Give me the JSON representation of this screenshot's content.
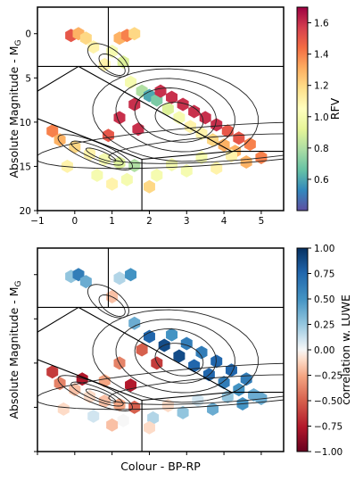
{
  "chart_data": [
    {
      "type": "heatmap",
      "panel": "top",
      "xlabel": "",
      "ylabel": "Absolute Magnitude - M",
      "ylabel_sub": "G",
      "xlim": [
        -1,
        5.6
      ],
      "ylim": [
        20,
        -3
      ],
      "y_inverted": true,
      "xticks": [
        "−1",
        "0",
        "1",
        "2",
        "3",
        "4",
        "5"
      ],
      "xtick_values": [
        -1,
        0,
        1,
        2,
        3,
        4,
        5
      ],
      "yticks": [
        "0",
        "5",
        "10",
        "15",
        "20"
      ],
      "ytick_values": [
        0,
        5,
        10,
        15,
        20
      ],
      "colorbar": {
        "label": "RFV",
        "range": [
          0.4,
          1.7
        ],
        "ticks": [
          "0.6",
          "0.8",
          "1.0",
          "1.2",
          "1.4",
          "1.6"
        ],
        "tick_values": [
          0.6,
          0.8,
          1.0,
          1.2,
          1.4,
          1.6
        ],
        "colormap": "Spectral_r"
      },
      "cells": [
        {
          "x": -0.1,
          "y": 0.2,
          "v": 1.5
        },
        {
          "x": 0.1,
          "y": 0.0,
          "v": 1.3
        },
        {
          "x": 0.3,
          "y": 0.5,
          "v": 1.2
        },
        {
          "x": 0.5,
          "y": 1.5,
          "v": 1.1
        },
        {
          "x": 1.2,
          "y": 0.5,
          "v": 1.3
        },
        {
          "x": 1.4,
          "y": 0.2,
          "v": 1.4
        },
        {
          "x": 1.6,
          "y": 0.0,
          "v": 1.2
        },
        {
          "x": 1.0,
          "y": 2.0,
          "v": 1.0
        },
        {
          "x": 1.3,
          "y": 3.2,
          "v": 0.9
        },
        {
          "x": 0.8,
          "y": 3.5,
          "v": 1.1
        },
        {
          "x": 1.5,
          "y": 5.5,
          "v": 1.0
        },
        {
          "x": 1.8,
          "y": 6.5,
          "v": 0.8
        },
        {
          "x": 2.0,
          "y": 7.0,
          "v": 0.6
        },
        {
          "x": 2.2,
          "y": 7.5,
          "v": 0.7
        },
        {
          "x": 2.5,
          "y": 8.5,
          "v": 0.9
        },
        {
          "x": 2.8,
          "y": 9.5,
          "v": 1.0
        },
        {
          "x": 3.1,
          "y": 10.5,
          "v": 1.1
        },
        {
          "x": 3.4,
          "y": 11.3,
          "v": 1.1
        },
        {
          "x": 3.7,
          "y": 12.0,
          "v": 1.2
        },
        {
          "x": 4.0,
          "y": 12.6,
          "v": 1.3
        },
        {
          "x": 4.3,
          "y": 13.3,
          "v": 1.3
        },
        {
          "x": 2.3,
          "y": 6.5,
          "v": 1.6
        },
        {
          "x": 2.6,
          "y": 7.2,
          "v": 1.6
        },
        {
          "x": 2.9,
          "y": 8.0,
          "v": 1.6
        },
        {
          "x": 3.2,
          "y": 8.8,
          "v": 1.6
        },
        {
          "x": 3.5,
          "y": 9.5,
          "v": 1.6
        },
        {
          "x": 3.8,
          "y": 10.3,
          "v": 1.6
        },
        {
          "x": 4.1,
          "y": 11.0,
          "v": 1.5
        },
        {
          "x": 4.4,
          "y": 11.8,
          "v": 1.5
        },
        {
          "x": 4.7,
          "y": 12.5,
          "v": 1.4
        },
        {
          "x": 1.6,
          "y": 8.0,
          "v": 1.6
        },
        {
          "x": 1.2,
          "y": 9.5,
          "v": 1.6
        },
        {
          "x": 1.7,
          "y": 10.8,
          "v": 1.6
        },
        {
          "x": 0.9,
          "y": 11.5,
          "v": 1.5
        },
        {
          "x": -0.6,
          "y": 11.0,
          "v": 1.4
        },
        {
          "x": -0.4,
          "y": 12.0,
          "v": 1.3
        },
        {
          "x": 0.0,
          "y": 12.8,
          "v": 1.2
        },
        {
          "x": 0.4,
          "y": 13.6,
          "v": 1.1
        },
        {
          "x": 0.8,
          "y": 14.2,
          "v": 1.0
        },
        {
          "x": 1.2,
          "y": 14.6,
          "v": 0.9
        },
        {
          "x": 1.6,
          "y": 14.9,
          "v": 0.8
        },
        {
          "x": -0.2,
          "y": 15.0,
          "v": 1.1
        },
        {
          "x": 0.6,
          "y": 16.0,
          "v": 1.0
        },
        {
          "x": 1.4,
          "y": 16.5,
          "v": 1.0
        },
        {
          "x": 2.2,
          "y": 16.0,
          "v": 1.0
        },
        {
          "x": 3.0,
          "y": 15.5,
          "v": 1.0
        },
        {
          "x": 3.8,
          "y": 15.2,
          "v": 1.1
        },
        {
          "x": 4.6,
          "y": 14.5,
          "v": 1.3
        },
        {
          "x": 5.0,
          "y": 14.0,
          "v": 1.4
        },
        {
          "x": 2.6,
          "y": 14.8,
          "v": 1.0
        },
        {
          "x": 3.4,
          "y": 14.0,
          "v": 1.0
        },
        {
          "x": 4.2,
          "y": 13.8,
          "v": 1.1
        },
        {
          "x": 1.0,
          "y": 17.0,
          "v": 1.1
        },
        {
          "x": 2.0,
          "y": 17.3,
          "v": 1.2
        }
      ]
    },
    {
      "type": "heatmap",
      "panel": "bottom",
      "xlabel": "Colour - BP-RP",
      "ylabel": "Absolute Magnitude - M",
      "ylabel_sub": "G",
      "xlim": [
        -1,
        5.6
      ],
      "ylim": [
        20,
        -3
      ],
      "y_inverted": true,
      "xticks": [],
      "yticks": [],
      "colorbar": {
        "label": "correlation w. LUWE",
        "range": [
          -1.0,
          1.0
        ],
        "ticks": [
          "1.00",
          "0.75",
          "0.50",
          "0.25",
          "0.00",
          "−0.25",
          "−0.50",
          "−0.75",
          "−1.00"
        ],
        "tick_values": [
          1.0,
          0.75,
          0.5,
          0.25,
          0.0,
          -0.25,
          -0.5,
          -0.75,
          -1.0
        ],
        "colormap": "RdBu"
      },
      "cells": [
        {
          "x": -0.1,
          "y": 0.2,
          "v": 0.4
        },
        {
          "x": 0.1,
          "y": 0.0,
          "v": 0.7
        },
        {
          "x": 0.3,
          "y": 0.8,
          "v": 0.5
        },
        {
          "x": 1.2,
          "y": 0.4,
          "v": 0.3
        },
        {
          "x": 1.5,
          "y": 0.0,
          "v": 0.6
        },
        {
          "x": 1.0,
          "y": 2.5,
          "v": -0.3
        },
        {
          "x": 1.6,
          "y": 5.5,
          "v": 0.5
        },
        {
          "x": 2.0,
          "y": 7.0,
          "v": 0.8
        },
        {
          "x": 2.4,
          "y": 8.0,
          "v": 0.9
        },
        {
          "x": 2.8,
          "y": 9.2,
          "v": 0.9
        },
        {
          "x": 3.2,
          "y": 10.3,
          "v": 0.8
        },
        {
          "x": 3.6,
          "y": 11.3,
          "v": 0.8
        },
        {
          "x": 4.0,
          "y": 12.2,
          "v": 0.7
        },
        {
          "x": 4.4,
          "y": 13.0,
          "v": 0.6
        },
        {
          "x": 4.8,
          "y": 13.6,
          "v": 0.5
        },
        {
          "x": 2.6,
          "y": 6.8,
          "v": 0.6
        },
        {
          "x": 3.0,
          "y": 7.8,
          "v": 0.7
        },
        {
          "x": 3.4,
          "y": 8.8,
          "v": 0.7
        },
        {
          "x": 3.8,
          "y": 9.8,
          "v": 0.8
        },
        {
          "x": 4.2,
          "y": 10.8,
          "v": 0.8
        },
        {
          "x": 4.6,
          "y": 11.8,
          "v": 0.7
        },
        {
          "x": 1.8,
          "y": 8.5,
          "v": -0.6
        },
        {
          "x": 1.2,
          "y": 10.0,
          "v": -0.5
        },
        {
          "x": 0.8,
          "y": 12.0,
          "v": -0.4
        },
        {
          "x": -0.6,
          "y": 11.0,
          "v": -0.7
        },
        {
          "x": -0.4,
          "y": 12.3,
          "v": -0.5
        },
        {
          "x": 0.0,
          "y": 13.0,
          "v": -0.3
        },
        {
          "x": 0.4,
          "y": 13.8,
          "v": -0.2
        },
        {
          "x": 0.8,
          "y": 14.3,
          "v": -0.3
        },
        {
          "x": 1.2,
          "y": 14.7,
          "v": -0.4
        },
        {
          "x": 1.6,
          "y": 15.0,
          "v": -0.6
        },
        {
          "x": -0.3,
          "y": 15.2,
          "v": -0.2
        },
        {
          "x": 0.5,
          "y": 16.0,
          "v": 0.2
        },
        {
          "x": 1.3,
          "y": 16.5,
          "v": 0.0
        },
        {
          "x": 2.1,
          "y": 16.2,
          "v": 0.3
        },
        {
          "x": 2.9,
          "y": 15.6,
          "v": 0.4
        },
        {
          "x": 3.7,
          "y": 15.2,
          "v": 0.5
        },
        {
          "x": 4.5,
          "y": 14.6,
          "v": 0.6
        },
        {
          "x": 5.0,
          "y": 14.0,
          "v": 0.5
        },
        {
          "x": 2.5,
          "y": 14.8,
          "v": -0.2
        },
        {
          "x": 3.3,
          "y": 14.2,
          "v": 0.2
        },
        {
          "x": 4.1,
          "y": 13.8,
          "v": 0.4
        },
        {
          "x": 1.0,
          "y": 17.0,
          "v": -0.3
        },
        {
          "x": 2.0,
          "y": 17.3,
          "v": -0.2
        },
        {
          "x": 0.2,
          "y": 11.8,
          "v": -0.8
        },
        {
          "x": 2.2,
          "y": 10.0,
          "v": -0.7
        },
        {
          "x": 1.5,
          "y": 12.5,
          "v": -0.8
        }
      ]
    }
  ]
}
